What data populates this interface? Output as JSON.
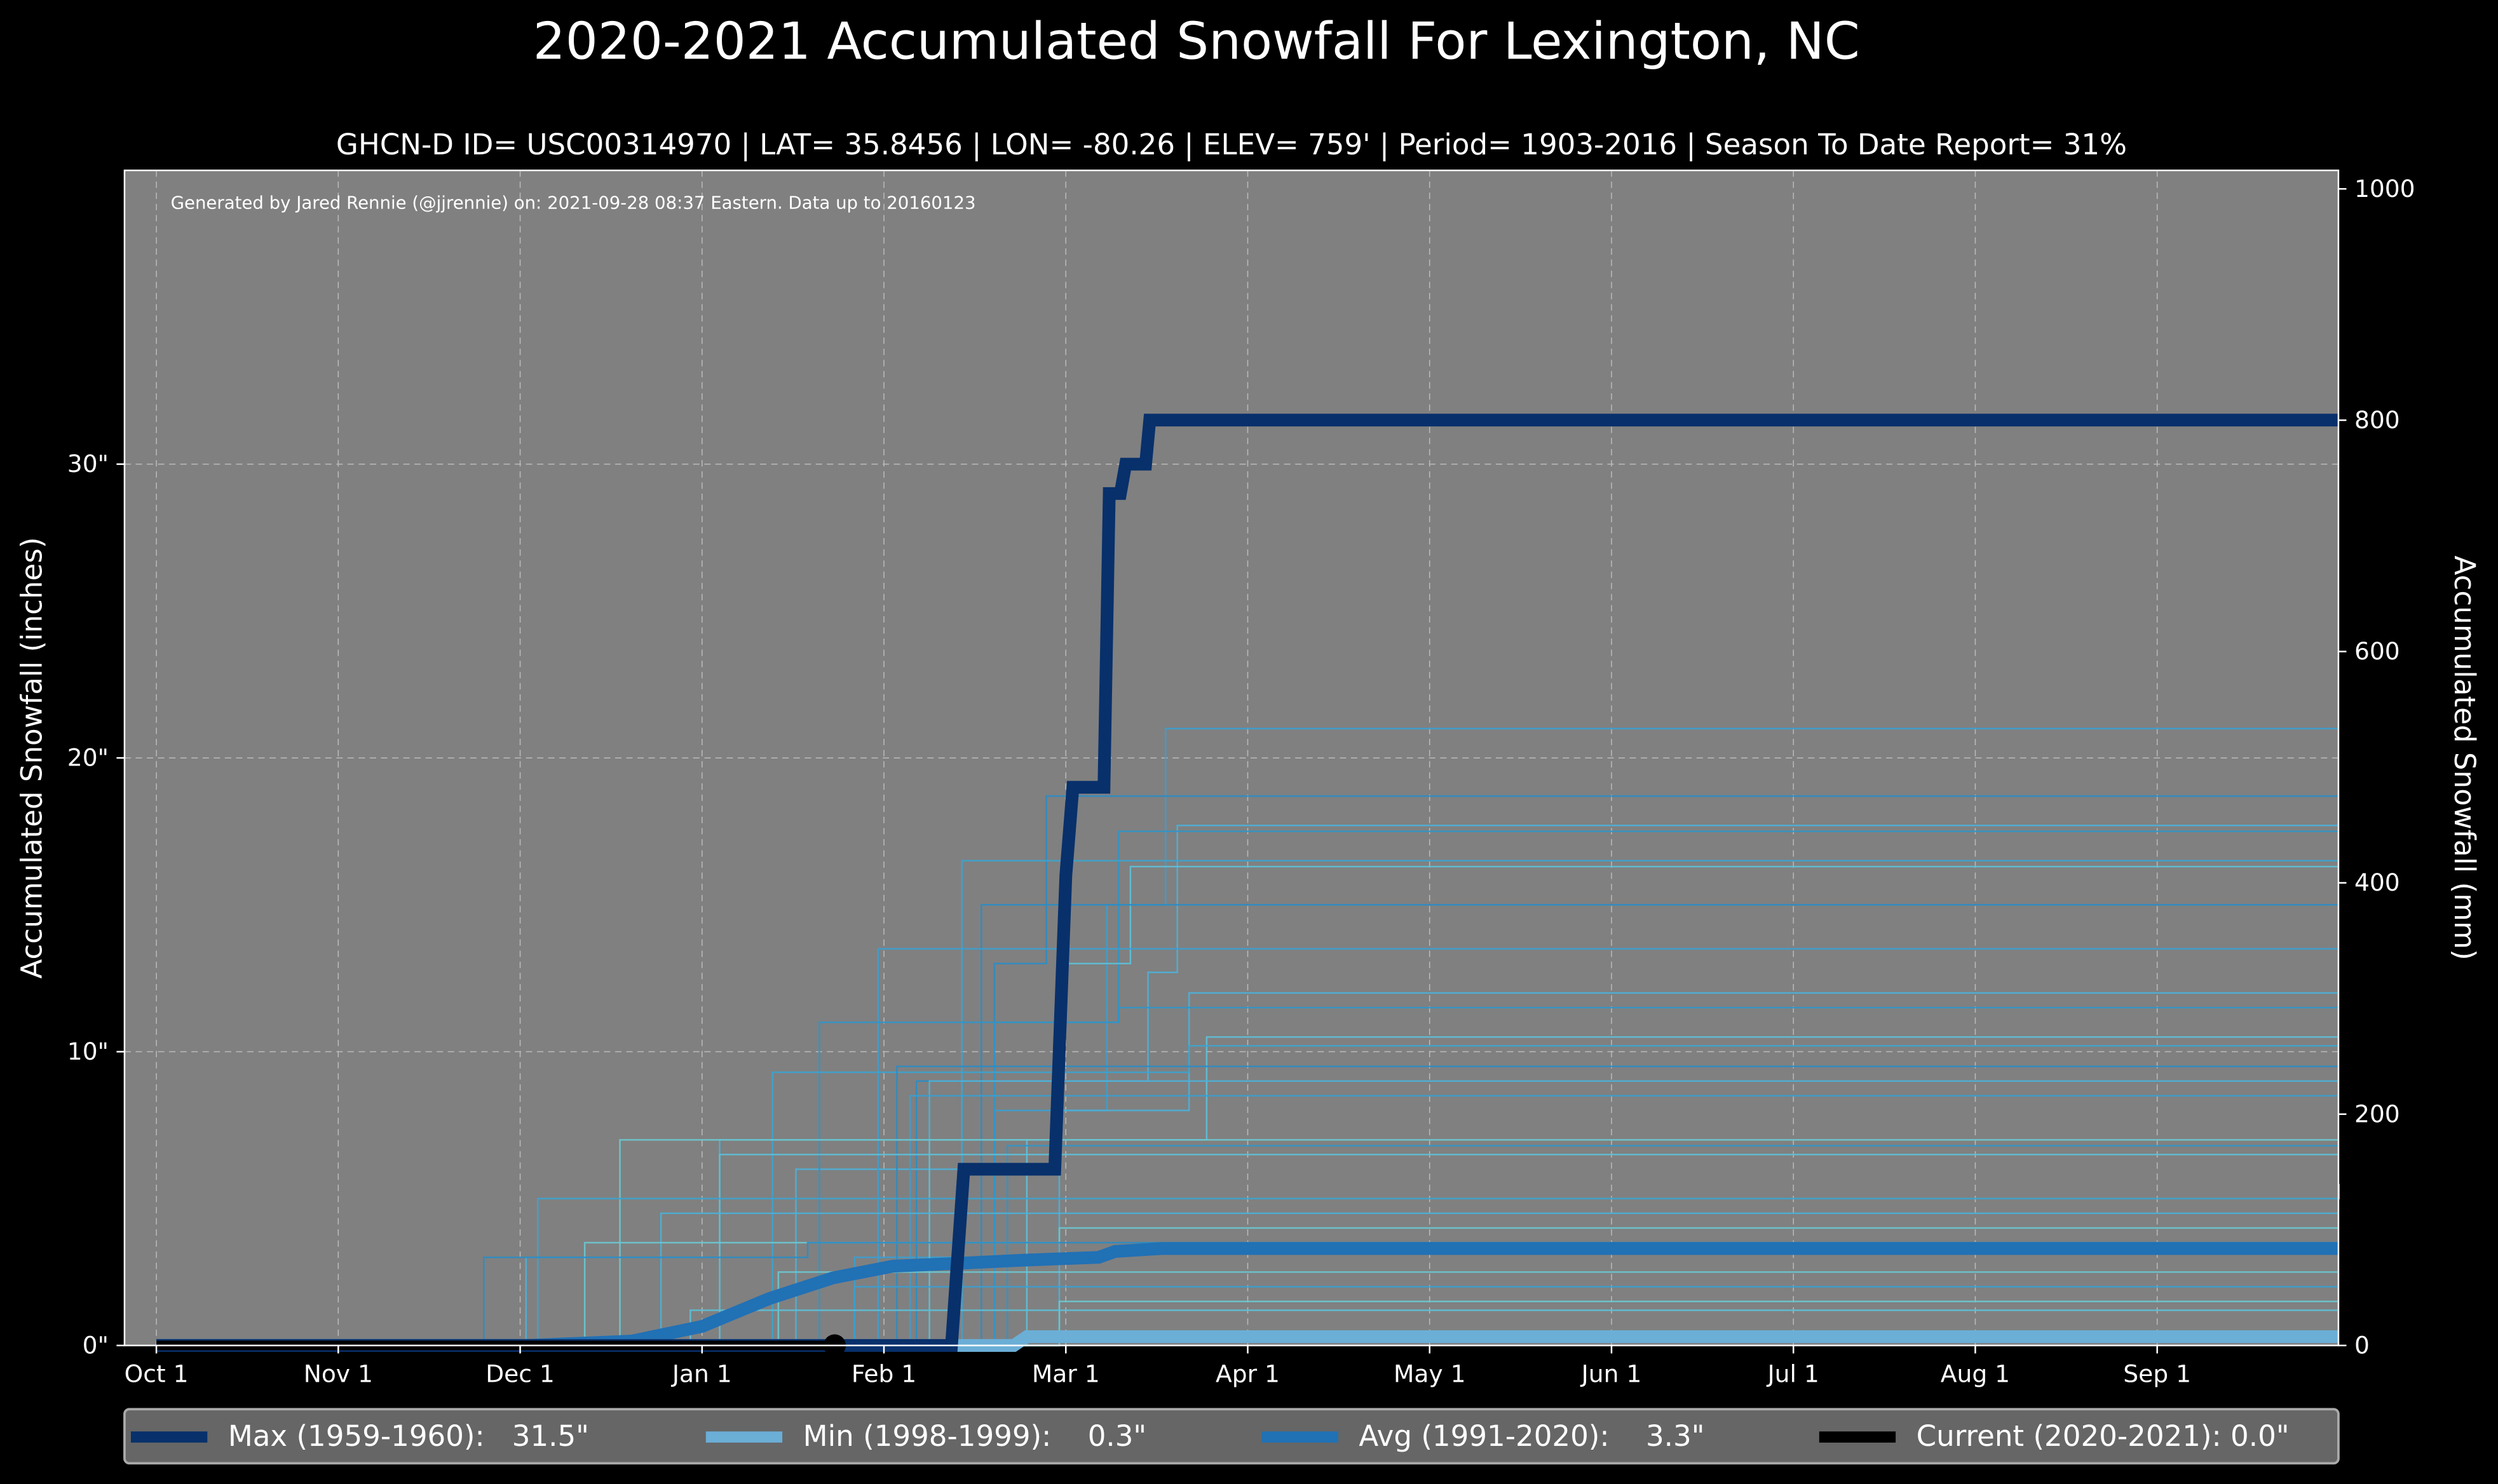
{
  "chart_data": {
    "type": "line",
    "title": "2020-2021 Accumulated Snowfall For Lexington, NC",
    "subtitle": "GHCN-D ID= USC00314970 | LAT= 35.8456 | LON= -80.26 | ELEV= 759' | Period= 1903-2016 | Season To Date Report= 31%",
    "note": "Generated by Jared Rennie (@jjrennie) on: 2021-09-28 08:37 Eastern. Data up to 20160123",
    "ylabel": "Accumulated Snowfall (inches)",
    "ylabel_right": "Accumulated Snowfall (mm)",
    "x_unit": "days since Oct 1",
    "xlim": [
      -5,
      365
    ],
    "ylim": [
      0,
      40
    ],
    "ylim_right": [
      0,
      1016
    ],
    "grid": true,
    "legend_position": "bottom",
    "x_ticks": [
      {
        "label": "Oct 1",
        "day": 0
      },
      {
        "label": "Nov 1",
        "day": 31
      },
      {
        "label": "Dec 1",
        "day": 61
      },
      {
        "label": "Jan 1",
        "day": 92
      },
      {
        "label": "Feb 1",
        "day": 123
      },
      {
        "label": "Mar 1",
        "day": 151
      },
      {
        "label": "Apr 1",
        "day": 182
      },
      {
        "label": "May 1",
        "day": 212
      },
      {
        "label": "Jun 1",
        "day": 243
      },
      {
        "label": "Jul 1",
        "day": 273
      },
      {
        "label": "Aug 1",
        "day": 304
      },
      {
        "label": "Sep 1",
        "day": 335
      }
    ],
    "y_ticks": [
      {
        "label": "0\"",
        "value": 0
      },
      {
        "label": "10\"",
        "value": 10
      },
      {
        "label": "20\"",
        "value": 20
      },
      {
        "label": "30\"",
        "value": 30
      }
    ],
    "y_ticks_right": [
      {
        "label": "0",
        "value": 0
      },
      {
        "label": "200",
        "value": 200
      },
      {
        "label": "400",
        "value": 400
      },
      {
        "label": "600",
        "value": 600
      },
      {
        "label": "800",
        "value": 800
      },
      {
        "label": "1000",
        "value": 1000
      }
    ],
    "background_seasons": [
      {
        "color": "#3a9fd0",
        "steps": [
          [
            0,
            0
          ],
          [
            110,
            0
          ],
          [
            118,
            3
          ],
          [
            140,
            8
          ],
          [
            158,
            15
          ],
          [
            168,
            21
          ],
          [
            365,
            21
          ]
        ]
      },
      {
        "color": "#2a8cc4",
        "steps": [
          [
            0,
            0
          ],
          [
            118,
            0
          ],
          [
            128,
            9
          ],
          [
            140,
            13
          ],
          [
            148,
            18.7
          ],
          [
            365,
            18.7
          ]
        ]
      },
      {
        "color": "#4bb0d8",
        "steps": [
          [
            0,
            0
          ],
          [
            100,
            0
          ],
          [
            108,
            6
          ],
          [
            135,
            9
          ],
          [
            165,
            12.7
          ],
          [
            170,
            17.7
          ],
          [
            365,
            17.7
          ]
        ]
      },
      {
        "color": "#2f95c8",
        "steps": [
          [
            0,
            0
          ],
          [
            130,
            0
          ],
          [
            140,
            11
          ],
          [
            160,
            17.5
          ],
          [
            365,
            17.5
          ]
        ]
      },
      {
        "color": "#3ba3cf",
        "steps": [
          [
            0,
            0
          ],
          [
            125,
            0
          ],
          [
            135,
            16.5
          ],
          [
            365,
            16.5
          ]
        ]
      },
      {
        "color": "#5cc0d8",
        "steps": [
          [
            0,
            0
          ],
          [
            120,
            0
          ],
          [
            130,
            7
          ],
          [
            150,
            13
          ],
          [
            162,
            16.3
          ],
          [
            365,
            16.3
          ]
        ]
      },
      {
        "color": "#2a8cc4",
        "steps": [
          [
            0,
            0
          ],
          [
            126,
            0
          ],
          [
            138,
            15
          ],
          [
            365,
            15
          ]
        ]
      },
      {
        "color": "#3a9fd0",
        "steps": [
          [
            0,
            0
          ],
          [
            115,
            0
          ],
          [
            122,
            13.5
          ],
          [
            365,
            13.5
          ]
        ]
      },
      {
        "color": "#4bb0d8",
        "steps": [
          [
            0,
            0
          ],
          [
            140,
            0
          ],
          [
            150,
            8
          ],
          [
            172,
            12
          ],
          [
            365,
            12
          ]
        ]
      },
      {
        "color": "#2f95c8",
        "steps": [
          [
            0,
            0
          ],
          [
            105,
            0
          ],
          [
            112,
            11
          ],
          [
            160,
            11.5
          ],
          [
            365,
            11.5
          ]
        ]
      },
      {
        "color": "#5cc0d8",
        "steps": [
          [
            0,
            0
          ],
          [
            132,
            0
          ],
          [
            145,
            7
          ],
          [
            175,
            10.5
          ],
          [
            365,
            10.5
          ]
        ]
      },
      {
        "color": "#3ba3cf",
        "steps": [
          [
            0,
            0
          ],
          [
            98,
            0
          ],
          [
            104,
            9.3
          ],
          [
            172,
            10.2
          ],
          [
            365,
            10.2
          ]
        ]
      },
      {
        "color": "#2a8cc4",
        "steps": [
          [
            0,
            0
          ],
          [
            110,
            0
          ],
          [
            125,
            9.5
          ],
          [
            365,
            9.5
          ]
        ]
      },
      {
        "color": "#4bb0d8",
        "steps": [
          [
            0,
            0
          ],
          [
            60,
            0
          ],
          [
            62,
            3
          ],
          [
            95,
            7
          ],
          [
            130,
            9
          ],
          [
            365,
            9
          ]
        ]
      },
      {
        "color": "#3a9fd0",
        "steps": [
          [
            0,
            0
          ],
          [
            120,
            0
          ],
          [
            127,
            8.5
          ],
          [
            365,
            8.5
          ]
        ]
      },
      {
        "color": "#6ac8d0",
        "steps": [
          [
            0,
            0
          ],
          [
            75,
            0
          ],
          [
            78,
            7
          ],
          [
            365,
            7
          ]
        ]
      },
      {
        "color": "#2f95c8",
        "steps": [
          [
            0,
            0
          ],
          [
            135,
            0
          ],
          [
            142,
            6.8
          ],
          [
            365,
            6.8
          ]
        ]
      },
      {
        "color": "#5cc0d8",
        "steps": [
          [
            0,
            0
          ],
          [
            90,
            0
          ],
          [
            95,
            6.5
          ],
          [
            365,
            6.5
          ]
        ]
      },
      {
        "color": "#3ba3cf",
        "steps": [
          [
            0,
            0
          ],
          [
            62,
            0
          ],
          [
            64,
            5
          ],
          [
            365,
            5.5
          ]
        ]
      },
      {
        "color": "#4bb0d8",
        "steps": [
          [
            0,
            0
          ],
          [
            80,
            0
          ],
          [
            85,
            4.5
          ],
          [
            365,
            4.5
          ]
        ]
      },
      {
        "color": "#6ac8d0",
        "steps": [
          [
            0,
            0
          ],
          [
            68,
            0
          ],
          [
            72,
            3.5
          ],
          [
            150,
            4
          ],
          [
            365,
            4
          ]
        ]
      },
      {
        "color": "#2a8cc4",
        "steps": [
          [
            0,
            0
          ],
          [
            52,
            0
          ],
          [
            55,
            3
          ],
          [
            70,
            3
          ],
          [
            110,
            3.5
          ],
          [
            365,
            3.5
          ]
        ]
      },
      {
        "color": "#6ac8d0",
        "steps": [
          [
            0,
            0
          ],
          [
            100,
            0
          ],
          [
            105,
            2.5
          ],
          [
            365,
            2.5
          ]
        ]
      },
      {
        "color": "#3a9fd0",
        "steps": [
          [
            0,
            0
          ],
          [
            115,
            0
          ],
          [
            118,
            2
          ],
          [
            365,
            2
          ]
        ]
      },
      {
        "color": "#6ac8d0",
        "steps": [
          [
            0,
            0
          ],
          [
            148,
            0
          ],
          [
            150,
            1.5
          ],
          [
            365,
            1.5
          ]
        ]
      },
      {
        "color": "#5cc0d8",
        "steps": [
          [
            0,
            0
          ],
          [
            85,
            0
          ],
          [
            90,
            1.2
          ],
          [
            365,
            1.2
          ]
        ]
      }
    ],
    "series": [
      {
        "name": "Max (1959-1960)",
        "color": "#08306b",
        "width": 8,
        "points": [
          [
            0,
            0
          ],
          [
            133.4,
            0
          ],
          [
            135.3,
            6
          ],
          [
            149.3,
            6
          ],
          [
            151,
            16
          ],
          [
            152.2,
            19
          ],
          [
            157.5,
            19
          ],
          [
            158.4,
            29
          ],
          [
            160.3,
            29
          ],
          [
            161.2,
            30
          ],
          [
            164.6,
            30
          ],
          [
            165.3,
            31.5
          ],
          [
            365,
            31.5
          ]
        ]
      },
      {
        "name": "Min (1998-1999)",
        "color": "#6baed6",
        "width": 8,
        "points": [
          [
            0,
            0
          ],
          [
            143,
            0
          ],
          [
            145,
            0.3
          ],
          [
            365,
            0.3
          ]
        ]
      },
      {
        "name": "Avg (1991-2020)",
        "color": "#2171b5",
        "width": 8,
        "points": [
          [
            0,
            0
          ],
          [
            62,
            0
          ],
          [
            80,
            0.15
          ],
          [
            92,
            0.65
          ],
          [
            103.5,
            1.6
          ],
          [
            114.3,
            2.3
          ],
          [
            124.4,
            2.7
          ],
          [
            134.8,
            2.8
          ],
          [
            144,
            2.9
          ],
          [
            156.6,
            3.0
          ],
          [
            159.4,
            3.2
          ],
          [
            167.4,
            3.3
          ],
          [
            365,
            3.3
          ]
        ]
      },
      {
        "name": "Current (2020-2021)",
        "color": "#000000",
        "width": 6,
        "points": [
          [
            0,
            0
          ],
          [
            114.6,
            0
          ]
        ]
      }
    ],
    "legend": [
      {
        "label": "Max (1959-1960):   31.5\"",
        "color": "#08306b"
      },
      {
        "label": "Min (1998-1999):    0.3\"",
        "color": "#6baed6"
      },
      {
        "label": "Avg (1991-2020):    3.3\"",
        "color": "#2171b5"
      },
      {
        "label": "Current (2020-2021): 0.0\"",
        "color": "#000000"
      }
    ]
  }
}
